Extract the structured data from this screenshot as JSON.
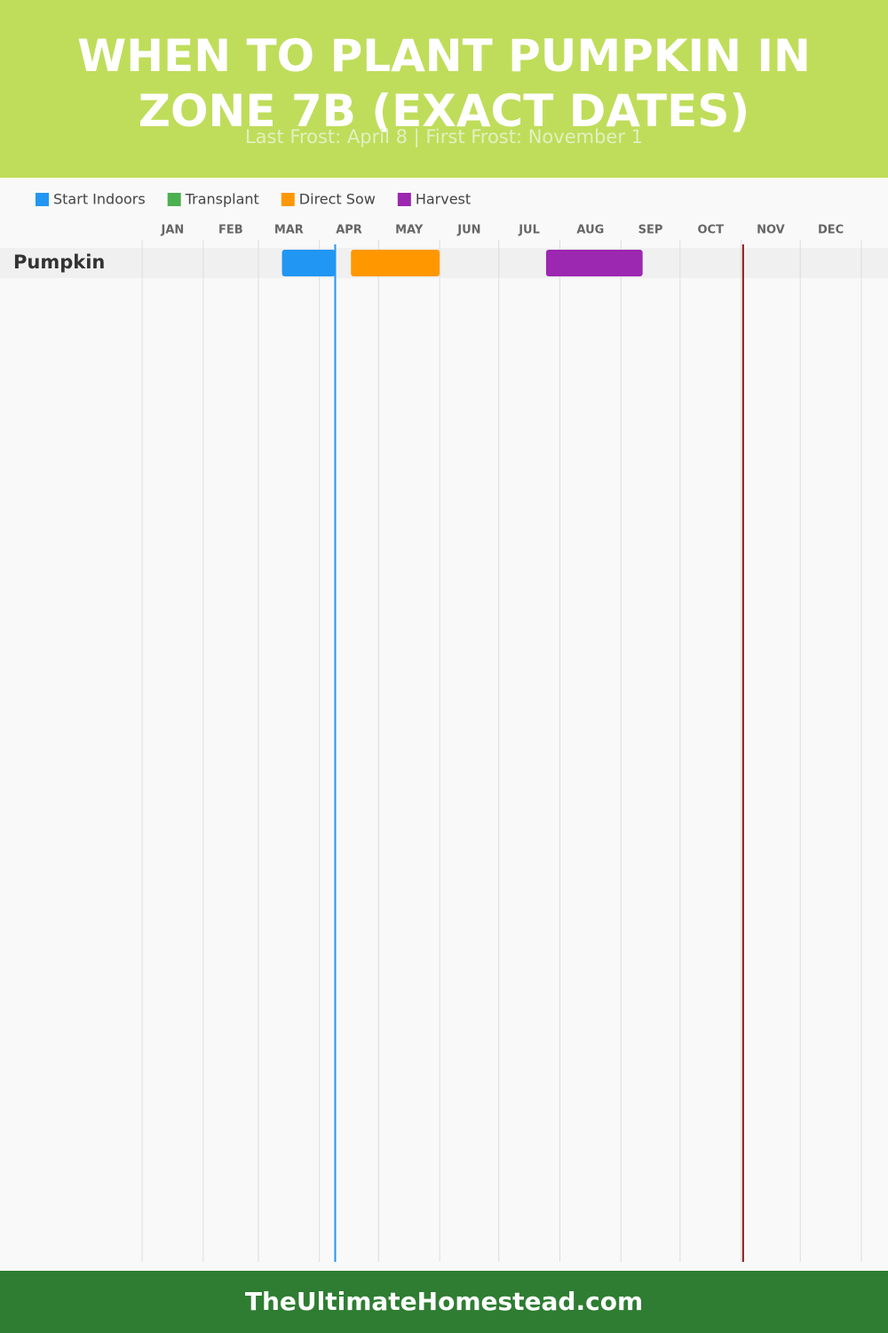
{
  "chart_data": {
    "type": "gantt",
    "title": "WHEN TO PLANT PUMPKIN IN ZONE 7B (EXACT DATES)",
    "subtitle": "Last Frost: April 8 | First Frost: November 1",
    "rows": [
      "Pumpkin"
    ],
    "series": [
      {
        "name": "Start Indoors",
        "color": "#2196f3",
        "values": [
          [
            71,
            98
          ]
        ]
      },
      {
        "name": "Transplant",
        "color": "#4caf50",
        "values": [
          null
        ]
      },
      {
        "name": "Direct Sow",
        "color": "#ff9800",
        "values": [
          [
            106,
            151
          ]
        ]
      },
      {
        "name": "Harvest",
        "color": "#9c27b0",
        "values": [
          [
            205,
            254
          ]
        ]
      }
    ],
    "markers": [
      {
        "value": 98,
        "color": "#2196f3"
      },
      {
        "value": 305,
        "color": "#8b1a1a"
      }
    ],
    "xlim": [
      0,
      365
    ],
    "xticks": [
      {
        "value": 0,
        "label": "JAN"
      },
      {
        "value": 31,
        "label": "FEB"
      },
      {
        "value": 59,
        "label": "MAR"
      },
      {
        "value": 90,
        "label": "APR"
      },
      {
        "value": 120,
        "label": "MAY"
      },
      {
        "value": 151,
        "label": "JUN"
      },
      {
        "value": 181,
        "label": "JUL"
      },
      {
        "value": 212,
        "label": "AUG"
      },
      {
        "value": 243,
        "label": "SEP"
      },
      {
        "value": 273,
        "label": "OCT"
      },
      {
        "value": 304,
        "label": "NOV"
      },
      {
        "value": 334,
        "label": "DEC"
      }
    ],
    "grid": true
  },
  "footer": "TheUltimateHomestead.com"
}
